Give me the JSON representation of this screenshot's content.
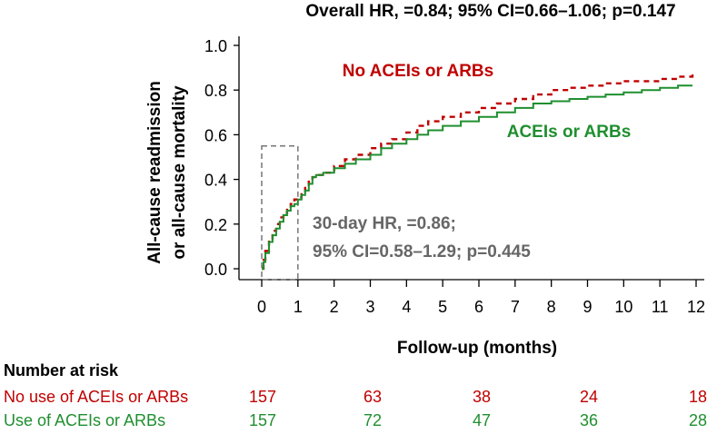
{
  "chart_data": {
    "type": "line",
    "title": "Overall HR, =0.84; 95% CI=0.66–1.06; p=0.147",
    "xlabel": "Follow-up (months)",
    "ylabel_line1": "All-cause readmission",
    "ylabel_line2": "or all-cause mortality",
    "xlim": [
      0,
      12
    ],
    "ylim": [
      0,
      1.0
    ],
    "x_ticks": [
      0,
      1,
      2,
      3,
      4,
      5,
      6,
      7,
      8,
      9,
      10,
      11,
      12
    ],
    "y_ticks": [
      "0.0",
      "0.2",
      "0.4",
      "0.6",
      "0.8",
      "1.0"
    ],
    "y_tick_values": [
      0,
      0.2,
      0.4,
      0.6,
      0.8,
      1.0
    ],
    "series": [
      {
        "name": "No ACEIs or ARBs",
        "color": "#c00000",
        "style": "dashed",
        "points": [
          [
            0,
            0.0
          ],
          [
            0.05,
            0.04
          ],
          [
            0.1,
            0.08
          ],
          [
            0.2,
            0.13
          ],
          [
            0.3,
            0.17
          ],
          [
            0.4,
            0.2
          ],
          [
            0.5,
            0.23
          ],
          [
            0.6,
            0.25
          ],
          [
            0.7,
            0.27
          ],
          [
            0.8,
            0.29
          ],
          [
            0.9,
            0.31
          ],
          [
            1.0,
            0.32
          ],
          [
            1.1,
            0.34
          ],
          [
            1.2,
            0.37
          ],
          [
            1.3,
            0.39
          ],
          [
            1.4,
            0.41
          ],
          [
            1.5,
            0.42
          ],
          [
            1.7,
            0.43
          ],
          [
            2.0,
            0.46
          ],
          [
            2.3,
            0.49
          ],
          [
            2.6,
            0.51
          ],
          [
            3.0,
            0.54
          ],
          [
            3.3,
            0.56
          ],
          [
            3.6,
            0.58
          ],
          [
            4.0,
            0.61
          ],
          [
            4.3,
            0.64
          ],
          [
            4.6,
            0.66
          ],
          [
            5.0,
            0.68
          ],
          [
            5.5,
            0.7
          ],
          [
            6.0,
            0.72
          ],
          [
            6.5,
            0.74
          ],
          [
            7.0,
            0.76
          ],
          [
            7.5,
            0.78
          ],
          [
            8.0,
            0.8
          ],
          [
            8.5,
            0.81
          ],
          [
            9.0,
            0.82
          ],
          [
            9.5,
            0.83
          ],
          [
            10.0,
            0.84
          ],
          [
            10.5,
            0.84
          ],
          [
            11.0,
            0.85
          ],
          [
            11.5,
            0.86
          ],
          [
            11.9,
            0.88
          ]
        ]
      },
      {
        "name": "ACEIs or ARBs",
        "color": "#1f8f2f",
        "style": "solid",
        "points": [
          [
            0,
            0.0
          ],
          [
            0.05,
            0.03
          ],
          [
            0.1,
            0.07
          ],
          [
            0.2,
            0.12
          ],
          [
            0.3,
            0.15
          ],
          [
            0.4,
            0.18
          ],
          [
            0.5,
            0.21
          ],
          [
            0.6,
            0.24
          ],
          [
            0.7,
            0.26
          ],
          [
            0.8,
            0.28
          ],
          [
            0.9,
            0.29
          ],
          [
            1.0,
            0.31
          ],
          [
            1.1,
            0.33
          ],
          [
            1.2,
            0.35
          ],
          [
            1.3,
            0.38
          ],
          [
            1.4,
            0.41
          ],
          [
            1.5,
            0.42
          ],
          [
            1.7,
            0.43
          ],
          [
            2.0,
            0.45
          ],
          [
            2.3,
            0.47
          ],
          [
            2.6,
            0.49
          ],
          [
            3.0,
            0.51
          ],
          [
            3.3,
            0.54
          ],
          [
            3.6,
            0.56
          ],
          [
            4.0,
            0.58
          ],
          [
            4.3,
            0.6
          ],
          [
            4.6,
            0.62
          ],
          [
            5.0,
            0.64
          ],
          [
            5.5,
            0.66
          ],
          [
            6.0,
            0.68
          ],
          [
            6.5,
            0.7
          ],
          [
            7.0,
            0.72
          ],
          [
            7.5,
            0.74
          ],
          [
            8.0,
            0.75
          ],
          [
            8.5,
            0.76
          ],
          [
            9.0,
            0.77
          ],
          [
            9.5,
            0.78
          ],
          [
            10.0,
            0.79
          ],
          [
            10.5,
            0.8
          ],
          [
            11.0,
            0.81
          ],
          [
            11.5,
            0.82
          ],
          [
            11.9,
            0.82
          ]
        ]
      }
    ],
    "series_labels": [
      {
        "text": "No ACEIs or ARBs",
        "color": "#c00000"
      },
      {
        "text": "ACEIs or ARBs",
        "color": "#1f8f2f"
      }
    ],
    "inset_box": {
      "x_range": [
        0,
        1
      ],
      "y_range": [
        0,
        0.55
      ]
    },
    "annotation_line1": "30-day HR, =0.86;",
    "annotation_line2": "95% CI=0.58–1.29; p=0.445",
    "annotation_color": "#666666",
    "risk_table": {
      "heading": "Number at risk",
      "rows": [
        {
          "label": "No use of ACEIs or ARBs",
          "color": "#c00000",
          "values": [
            "157",
            "63",
            "38",
            "24",
            "18"
          ]
        },
        {
          "label": "Use of ACEIs or ARBs",
          "color": "#1f8f2f",
          "values": [
            "157",
            "72",
            "47",
            "36",
            "28"
          ]
        }
      ]
    }
  }
}
